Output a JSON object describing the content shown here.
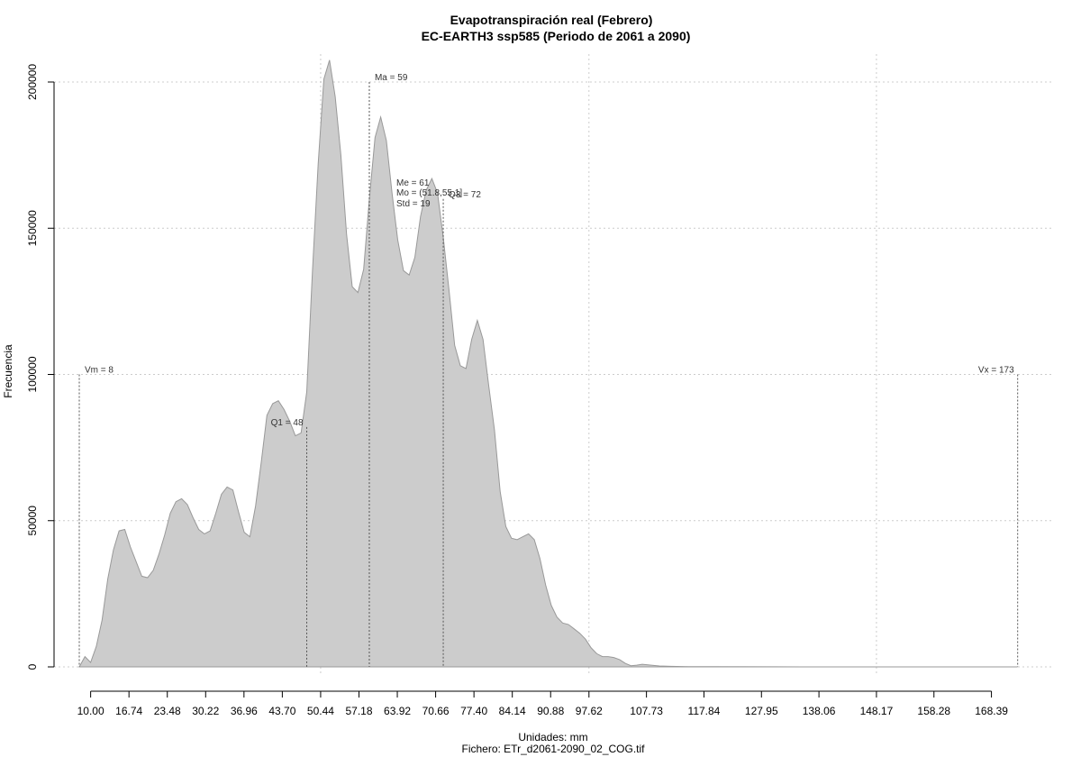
{
  "chart_data": {
    "type": "area",
    "title": "Evapotranspiración real (Febrero)",
    "subtitle": "EC-EARTH3 ssp585 (Periodo de 2061 a 2090)",
    "xlabel": "Unidades: mm",
    "ylabel": "Frecuencia",
    "footer": "Fichero: ETr_d2061-2090_02_COG.tif",
    "xlim": [
      8,
      174
    ],
    "ylim": [
      0,
      210000
    ],
    "grid": true,
    "fill_color": "#cccccc",
    "line_color": "#999999",
    "x_ticks": [
      "10.00",
      "16.74",
      "23.48",
      "30.22",
      "36.96",
      "43.70",
      "50.44",
      "57.18",
      "63.92",
      "70.66",
      "77.40",
      "84.14",
      "90.88",
      "97.62",
      "107.73",
      "117.84",
      "127.95",
      "138.06",
      "148.17",
      "158.28",
      "168.39"
    ],
    "y_ticks": [
      "0",
      "50000",
      "100000",
      "150000",
      "200000"
    ],
    "series": [
      {
        "x": [
          8,
          9,
          10,
          11,
          12,
          13,
          14,
          15,
          16,
          17,
          18,
          19,
          20,
          21,
          22,
          23,
          24,
          25,
          26,
          27,
          28,
          29,
          30,
          31,
          32,
          33,
          34,
          35,
          36,
          37,
          38,
          39,
          40,
          41,
          42,
          43,
          44,
          45,
          46,
          47,
          48,
          49,
          50,
          51,
          52,
          53,
          54,
          55,
          56,
          57,
          58,
          59,
          60,
          61,
          62,
          63,
          64,
          65,
          66,
          67,
          68,
          69,
          70,
          71,
          72,
          73,
          74,
          75,
          76,
          77,
          78,
          79,
          80,
          81,
          82,
          83,
          84,
          85,
          86,
          87,
          88,
          89,
          90,
          91,
          92,
          93,
          94,
          95,
          96,
          97,
          98,
          99,
          100,
          101,
          102,
          103,
          104,
          105,
          106,
          107,
          108,
          109,
          110,
          112,
          115,
          120,
          130,
          140,
          150,
          160,
          170,
          173
        ],
        "y": [
          0,
          3500,
          1500,
          7000,
          16000,
          30000,
          40000,
          46500,
          47000,
          41000,
          36000,
          31000,
          30500,
          33000,
          38500,
          45000,
          52500,
          56500,
          57500,
          55500,
          51000,
          47000,
          45500,
          46500,
          52500,
          59000,
          61500,
          60500,
          53000,
          46000,
          44500,
          55000,
          70000,
          86000,
          90000,
          91000,
          88000,
          84000,
          79000,
          80000,
          94000,
          135000,
          172000,
          201000,
          207500,
          195000,
          175000,
          148000,
          130000,
          128000,
          136000,
          160000,
          181000,
          188000,
          180000,
          162000,
          146000,
          135500,
          134000,
          140000,
          154000,
          163000,
          167000,
          162000,
          147000,
          129000,
          110000,
          103000,
          102000,
          112000,
          118500,
          112000,
          96000,
          81000,
          60000,
          48000,
          44000,
          43500,
          44500,
          45500,
          43500,
          37000,
          28000,
          21000,
          17000,
          15000,
          14500,
          13000,
          11500,
          9500,
          6500,
          4500,
          3500,
          3500,
          3200,
          2500,
          1200,
          400,
          600,
          900,
          700,
          500,
          300,
          200,
          100,
          50,
          20,
          10,
          5,
          0,
          0,
          0
        ],
        "name": ""
      }
    ],
    "vlines": [
      {
        "x": 8,
        "y_top": 100000,
        "label": "Vm = 8",
        "align": "start"
      },
      {
        "x": 48,
        "y_top": 82000,
        "label": "Q1 = 48",
        "align": "end"
      },
      {
        "x": 59,
        "y_top": 200000,
        "label": "Ma = 59",
        "align": "start"
      },
      {
        "x": 72,
        "y_top": 160000,
        "label": "Q3 = 72",
        "align": "start"
      },
      {
        "x": 173,
        "y_top": 100000,
        "label": "Vx = 173",
        "align": "end"
      }
    ],
    "annotations": [
      {
        "text": "Me = 61"
      },
      {
        "text": "Mo = (51.8,55.1]"
      },
      {
        "text": "Std = 19"
      }
    ]
  }
}
